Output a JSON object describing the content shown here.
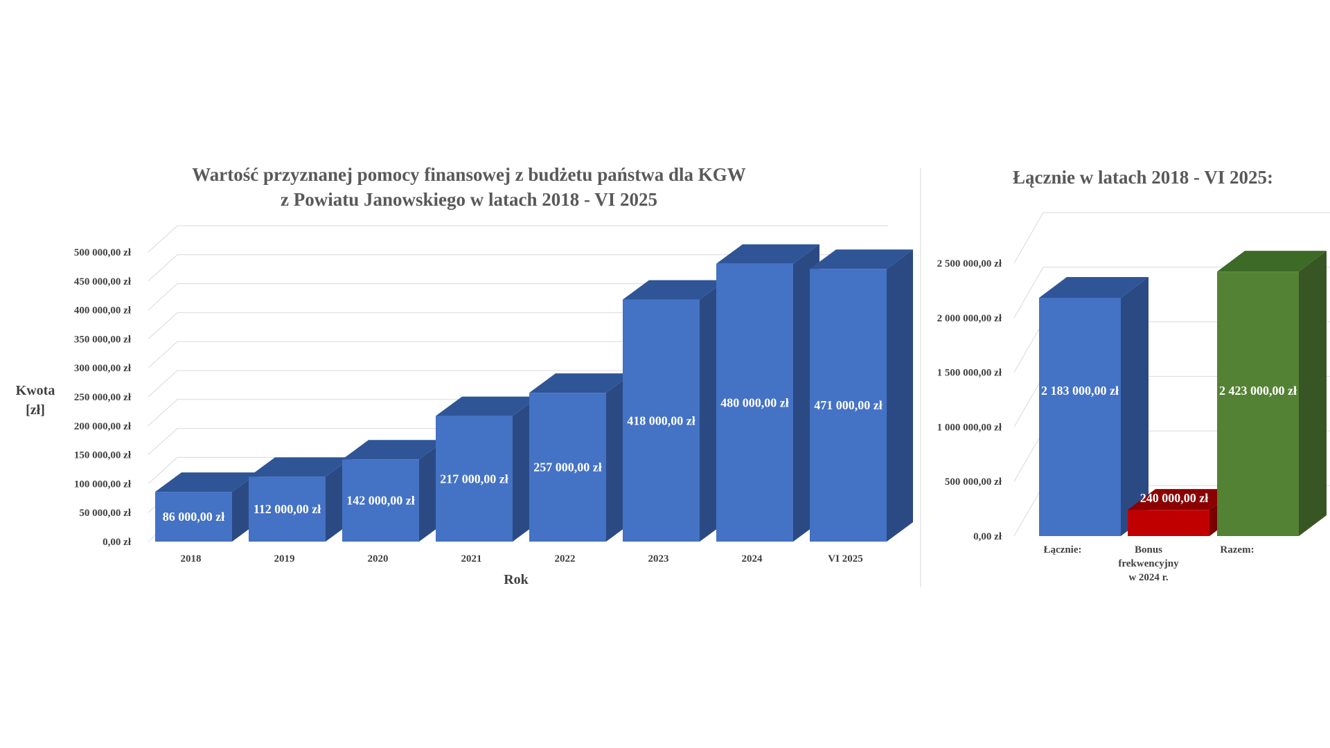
{
  "chart_data": [
    {
      "type": "bar",
      "title_line1": "Wartość przyznanej pomocy finansowej z budżetu państwa dla KGW",
      "title_line2": "z Powiatu Janowskiego w latach 2018 - VI 2025",
      "xlabel": "Rok",
      "ylabel_line1": "Kwota",
      "ylabel_line2": "[zł]",
      "ylim": [
        0,
        500000
      ],
      "y_ticks": [
        "0,00 zł",
        "50 000,00 zł",
        "100 000,00 zł",
        "150 000,00 zł",
        "200 000,00 zł",
        "250 000,00 zł",
        "300 000,00 zł",
        "350 000,00 zł",
        "400 000,00 zł",
        "450 000,00 zł",
        "500 000,00 zł"
      ],
      "categories": [
        "2018",
        "2019",
        "2020",
        "2021",
        "2022",
        "2023",
        "2024",
        "VI 2025"
      ],
      "values": [
        86000,
        112000,
        142000,
        217000,
        257000,
        418000,
        480000,
        471000
      ],
      "data_labels": [
        "86 000,00 zł",
        "112 000,00 zł",
        "142 000,00 zł",
        "217 000,00 zł",
        "257 000,00 zł",
        "418 000,00 zł",
        "480 000,00 zł",
        "471 000,00 zł"
      ],
      "colors": {
        "front": "#4472c4",
        "top": "#2f5597",
        "side": "#2b4a84"
      }
    },
    {
      "type": "bar",
      "title": "Łącznie w latach 2018 - VI 2025:",
      "ylim": [
        0,
        2500000
      ],
      "y_ticks": [
        "0,00 zł",
        "500 000,00 zł",
        "1 000 000,00 zł",
        "1 500 000,00 zł",
        "2 000 000,00 zł",
        "2 500 000,00 zł"
      ],
      "categories": [
        [
          "Łącznie:"
        ],
        [
          "Bonus",
          "frekwencyjny",
          "w 2024 r."
        ],
        [
          "Razem:"
        ]
      ],
      "values": [
        2183000,
        240000,
        2423000
      ],
      "data_labels": [
        "2 183 000,00 zł",
        "240 000,00 zł",
        "2 423 000,00 zł"
      ],
      "colors": [
        {
          "front": "#4472c4",
          "top": "#2f5597",
          "side": "#2b4a84"
        },
        {
          "front": "#c00000",
          "top": "#8b0000",
          "side": "#7a0000"
        },
        {
          "front": "#548235",
          "top": "#3d6b27",
          "side": "#375623"
        }
      ]
    }
  ]
}
